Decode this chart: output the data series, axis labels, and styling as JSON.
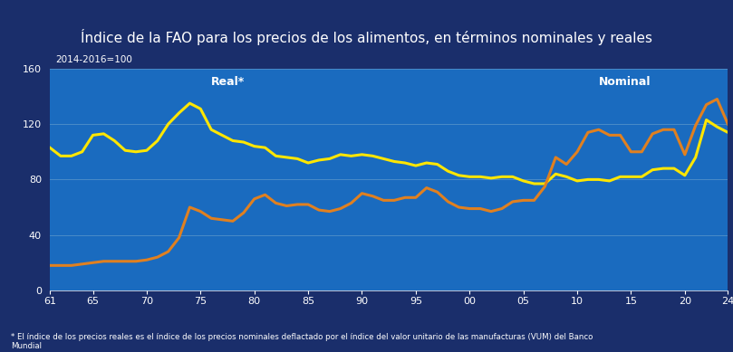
{
  "title": "Índice de la FAO para los precios de los alimentos, en términos nominales y reales",
  "subtitle": "2014-2016=100",
  "title_bg": "#1a2e6b",
  "plot_bg": "#1a6bbf",
  "border_color": "#5fc0d0",
  "ylabel_color": "#ffffff",
  "grid_color": "#4a8cc8",
  "footnote": "* El índice de los precios reales es el índice de los precios nominales deflactado por el índice del valor unitario de las manufacturas (VUM) del Banco\nMundial",
  "label_real": "Real*",
  "label_nominal": "Nominal",
  "color_real": "#FFE600",
  "color_nominal": "#E08020",
  "ylim": [
    0,
    160
  ],
  "yticks": [
    0,
    40,
    80,
    120,
    160
  ],
  "xtick_labels": [
    "61",
    "65",
    "70",
    "75",
    "80",
    "85",
    "90",
    "95",
    "00",
    "05",
    "10",
    "15",
    "20",
    "24"
  ],
  "x_numeric": [
    61,
    65,
    70,
    75,
    80,
    85,
    90,
    95,
    100,
    105,
    110,
    115,
    120,
    124
  ],
  "years_x": [
    61,
    62,
    63,
    64,
    65,
    66,
    67,
    68,
    69,
    70,
    71,
    72,
    73,
    74,
    75,
    76,
    77,
    78,
    79,
    80,
    81,
    82,
    83,
    84,
    85,
    86,
    87,
    88,
    89,
    90,
    91,
    92,
    93,
    94,
    95,
    96,
    97,
    98,
    99,
    100,
    101,
    102,
    103,
    104,
    105,
    106,
    107,
    108,
    109,
    110,
    111,
    112,
    113,
    114,
    115,
    116,
    117,
    118,
    119,
    120,
    121,
    122,
    123,
    124
  ],
  "real": [
    103,
    97,
    97,
    100,
    112,
    113,
    108,
    101,
    100,
    101,
    108,
    120,
    128,
    135,
    131,
    116,
    112,
    108,
    107,
    104,
    103,
    97,
    96,
    95,
    92,
    94,
    95,
    98,
    97,
    98,
    97,
    95,
    93,
    92,
    90,
    92,
    91,
    86,
    83,
    82,
    82,
    81,
    82,
    82,
    79,
    77,
    77,
    84,
    82,
    79,
    80,
    80,
    79,
    82,
    82,
    82,
    87,
    88,
    88,
    83,
    96,
    123,
    118,
    114
  ],
  "nominal": [
    18,
    18,
    18,
    19,
    20,
    21,
    21,
    21,
    21,
    22,
    24,
    28,
    38,
    60,
    57,
    52,
    51,
    50,
    56,
    66,
    69,
    63,
    61,
    62,
    62,
    58,
    57,
    59,
    63,
    70,
    68,
    65,
    65,
    67,
    67,
    74,
    71,
    64,
    60,
    59,
    59,
    57,
    59,
    64,
    65,
    65,
    75,
    96,
    91,
    100,
    114,
    116,
    112,
    112,
    100,
    100,
    113,
    116,
    116,
    98,
    119,
    134,
    138,
    120
  ],
  "lw": 2.2,
  "title_fontsize": 11,
  "label_fontsize": 9,
  "tick_fontsize": 8
}
